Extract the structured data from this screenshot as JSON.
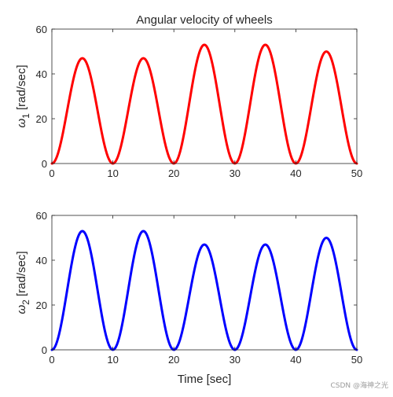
{
  "watermark": "CSDN @海神之光",
  "chart_data": [
    {
      "type": "line",
      "title": "Angular velocity of wheels",
      "ylabel_symbol": "ω",
      "ylabel_subscript": "1",
      "ylabel_unit": "[rad/sec]",
      "xlabel": "",
      "xlim": [
        0,
        50
      ],
      "ylim": [
        0,
        60
      ],
      "xticks": [
        0,
        10,
        20,
        30,
        40,
        50
      ],
      "yticks": [
        0,
        20,
        40,
        60
      ],
      "grid": false,
      "color": "#ff0000",
      "series": [
        {
          "x": [
            0,
            5,
            10,
            15,
            20,
            25,
            30,
            35,
            40,
            45,
            50
          ],
          "y": [
            0,
            47,
            0,
            47,
            0,
            53,
            0,
            53,
            0,
            50,
            0
          ]
        }
      ]
    },
    {
      "type": "line",
      "title": "",
      "ylabel_symbol": "ω",
      "ylabel_subscript": "2",
      "ylabel_unit": "[rad/sec]",
      "xlabel": "Time [sec]",
      "xlim": [
        0,
        50
      ],
      "ylim": [
        0,
        60
      ],
      "xticks": [
        0,
        10,
        20,
        30,
        40,
        50
      ],
      "yticks": [
        0,
        20,
        40,
        60
      ],
      "grid": false,
      "color": "#0000ff",
      "series": [
        {
          "x": [
            0,
            5,
            10,
            15,
            20,
            25,
            30,
            35,
            40,
            45,
            50
          ],
          "y": [
            0,
            53,
            0,
            53,
            0,
            47,
            0,
            47,
            0,
            50,
            0
          ]
        }
      ]
    }
  ]
}
